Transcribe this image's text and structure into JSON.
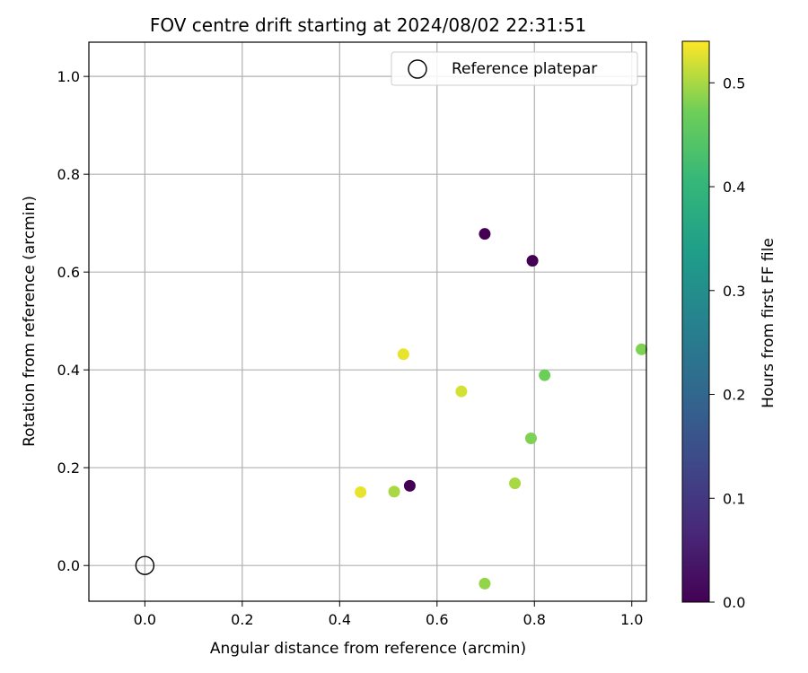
{
  "chart_data": {
    "type": "scatter",
    "title": "FOV centre drift starting at 2024/08/02 22:31:51",
    "xlabel": "Angular distance from reference (arcmin)",
    "ylabel": "Rotation from reference (arcmin)",
    "xlim": [
      -0.115,
      1.03
    ],
    "ylim": [
      -0.073,
      1.07
    ],
    "xticks": [
      0.0,
      0.2,
      0.4,
      0.6,
      0.8,
      1.0
    ],
    "yticks": [
      0.0,
      0.2,
      0.4,
      0.6,
      0.8,
      1.0
    ],
    "xtick_labels": [
      "0.0",
      "0.2",
      "0.4",
      "0.6",
      "0.8",
      "1.0"
    ],
    "ytick_labels": [
      "0.0",
      "0.2",
      "0.4",
      "0.6",
      "0.8",
      "1.0"
    ],
    "grid": true,
    "legend": {
      "location": "top-right",
      "entries": [
        "Reference platepar"
      ]
    },
    "reference_point": {
      "x": 0.0,
      "y": 0.0,
      "label": "Reference platepar"
    },
    "colorbar": {
      "label": "Hours from first FF file",
      "colormap": "viridis",
      "range": [
        0.0,
        0.54
      ],
      "ticks": [
        0.0,
        0.1,
        0.2,
        0.3,
        0.4,
        0.5
      ],
      "tick_labels": [
        "0.0",
        "0.1",
        "0.2",
        "0.3",
        "0.4",
        "0.5"
      ]
    },
    "points": [
      {
        "x": 0.698,
        "y": 0.678,
        "hours": 0.0
      },
      {
        "x": 0.796,
        "y": 0.623,
        "hours": 0.0
      },
      {
        "x": 0.544,
        "y": 0.163,
        "hours": 0.0
      },
      {
        "x": 0.531,
        "y": 0.432,
        "hours": 0.53
      },
      {
        "x": 0.65,
        "y": 0.356,
        "hours": 0.52
      },
      {
        "x": 1.02,
        "y": 0.442,
        "hours": 0.48
      },
      {
        "x": 0.821,
        "y": 0.389,
        "hours": 0.47
      },
      {
        "x": 0.793,
        "y": 0.26,
        "hours": 0.48
      },
      {
        "x": 0.76,
        "y": 0.168,
        "hours": 0.5
      },
      {
        "x": 0.443,
        "y": 0.15,
        "hours": 0.53
      },
      {
        "x": 0.512,
        "y": 0.151,
        "hours": 0.5
      },
      {
        "x": 0.698,
        "y": -0.037,
        "hours": 0.49
      }
    ]
  }
}
